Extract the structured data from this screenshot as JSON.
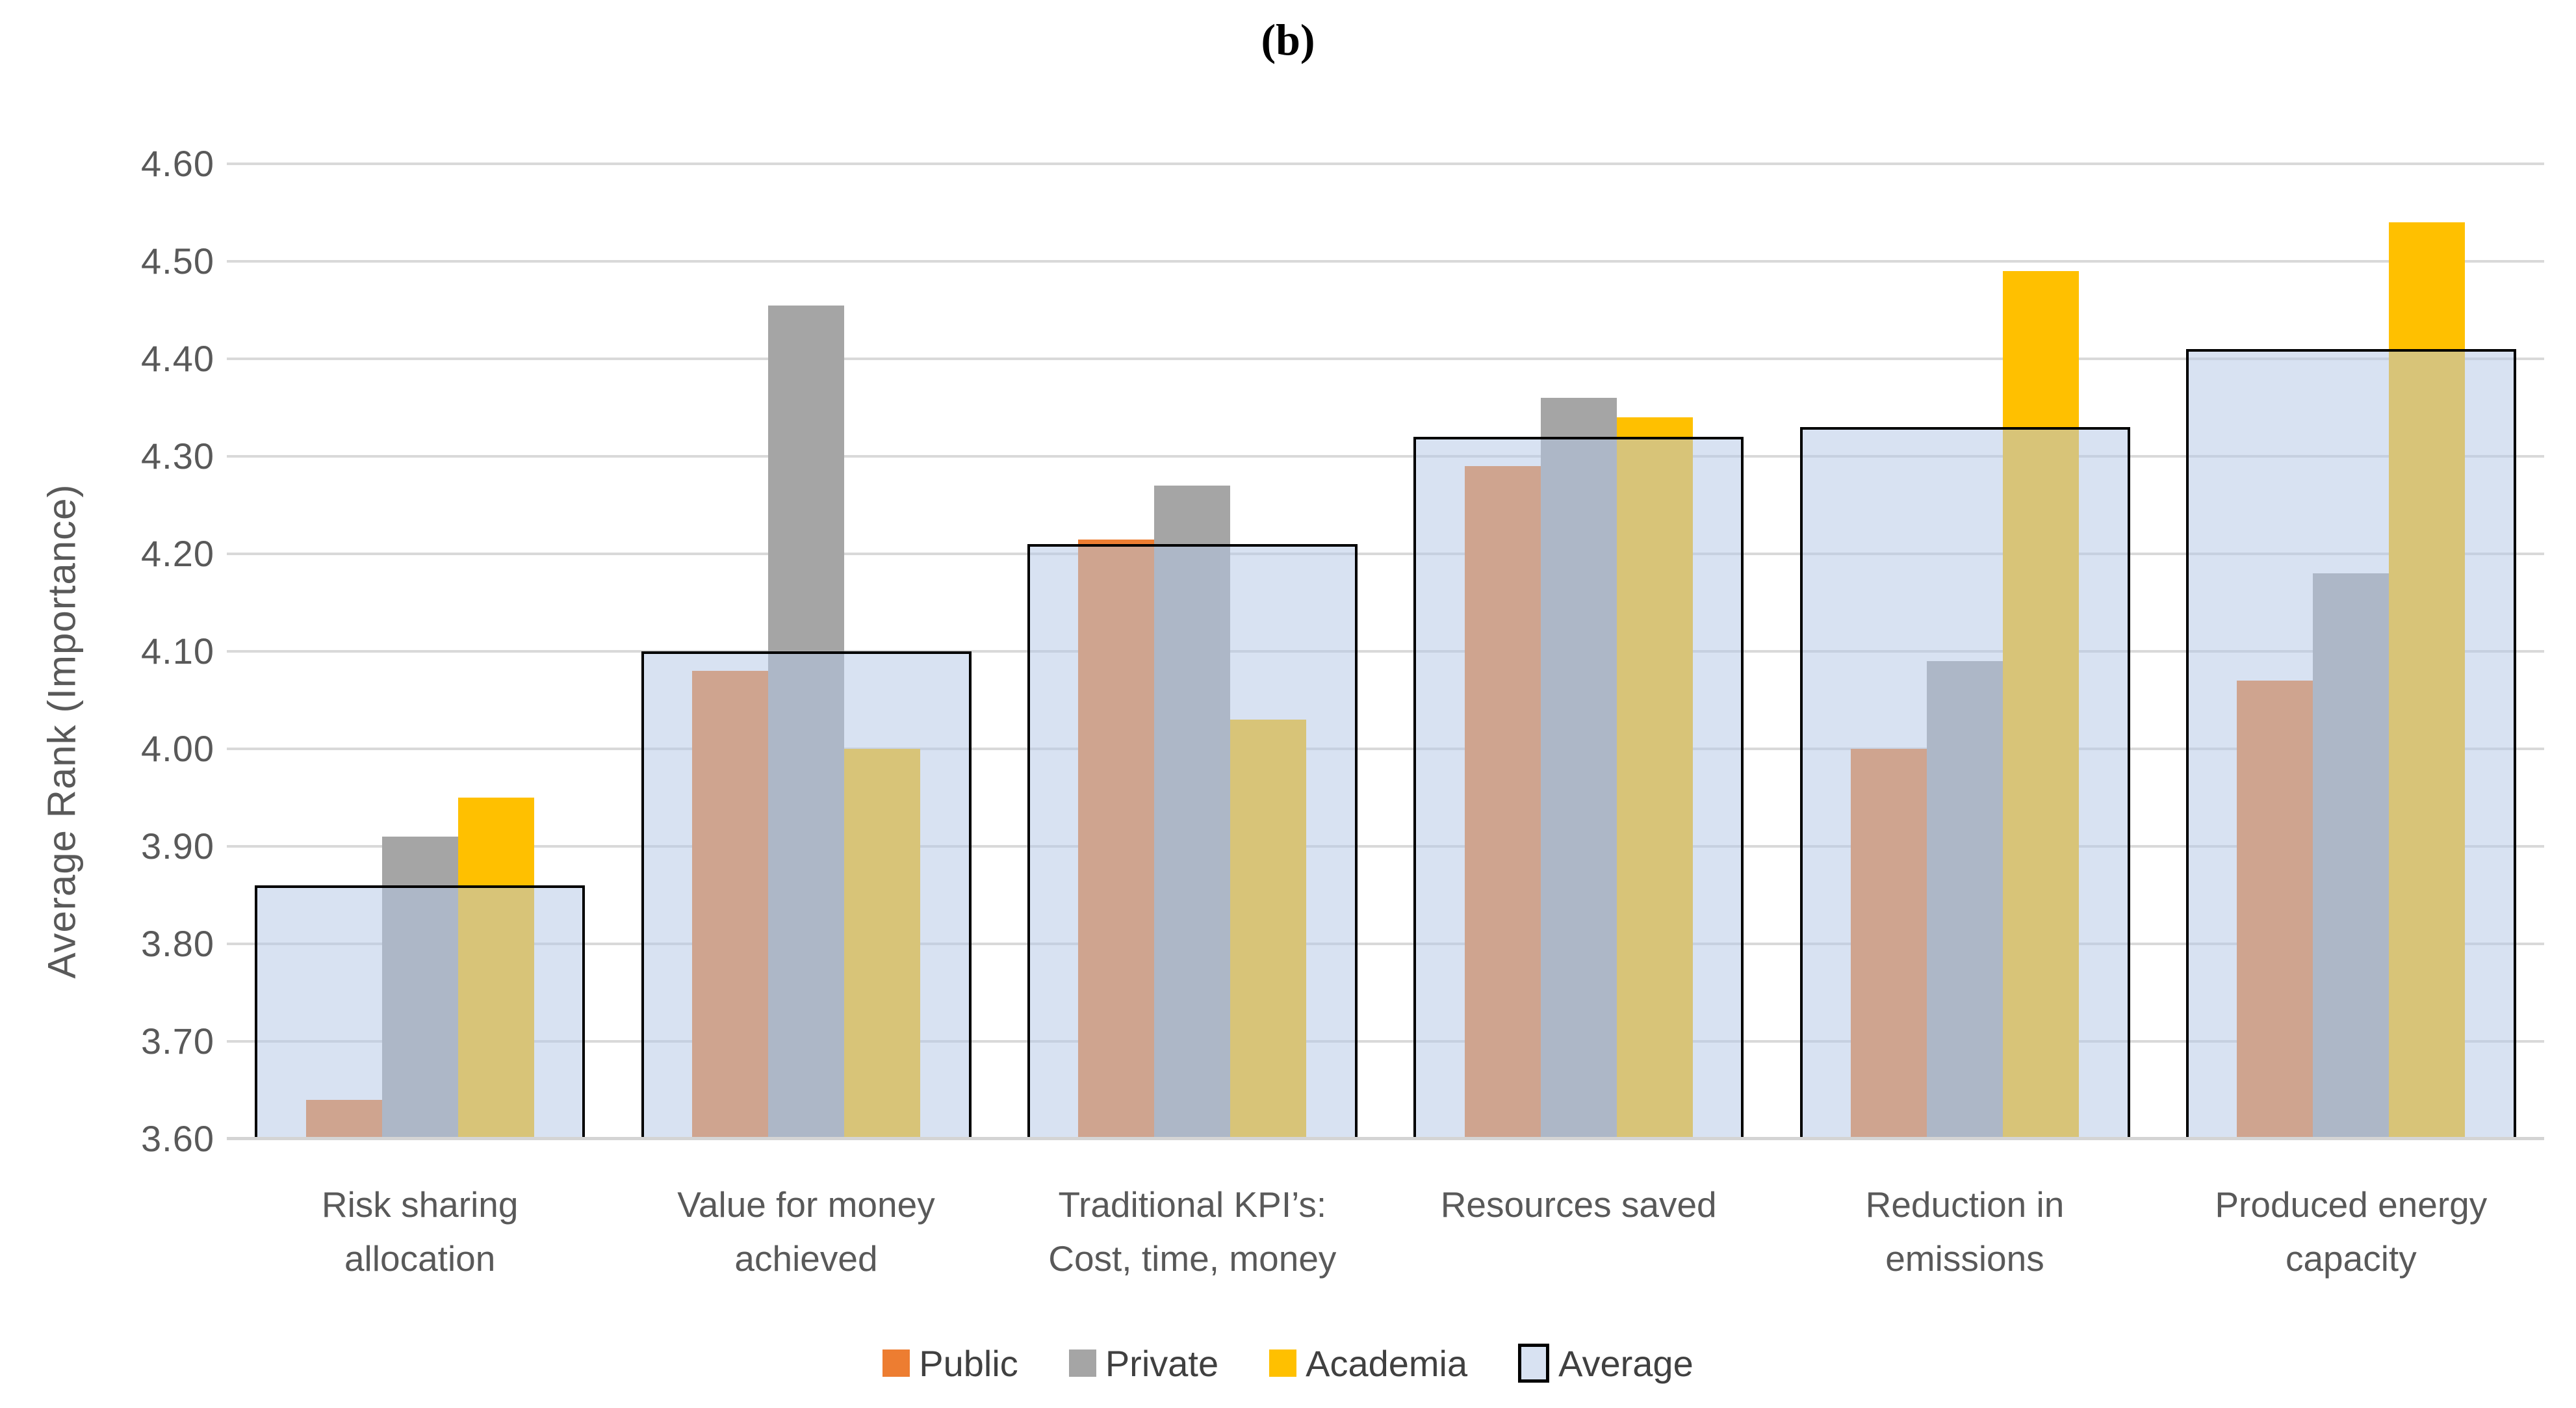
{
  "title": "(b)",
  "y_axis": {
    "label": "Average Rank (Importance)",
    "min": 3.6,
    "max": 4.6,
    "step": 0.1,
    "tick_labels": [
      "3.60",
      "3.70",
      "3.80",
      "3.90",
      "4.00",
      "4.10",
      "4.20",
      "4.30",
      "4.40",
      "4.50",
      "4.60"
    ]
  },
  "legend": {
    "items": [
      {
        "label": "Public",
        "color": "#ED7D31",
        "style": "solid"
      },
      {
        "label": "Private",
        "color": "#A5A5A5",
        "style": "solid"
      },
      {
        "label": "Academia",
        "color": "#FFC000",
        "style": "solid"
      },
      {
        "label": "Average",
        "color": "rgba(181,199,231,0.52)",
        "border_color": "#000000",
        "style": "outlined"
      }
    ]
  },
  "colors": {
    "public": "#ED7D31",
    "private": "#A5A5A5",
    "academia": "#FFC000",
    "average_fill": "rgba(181,199,231,0.52)",
    "average_border": "#000000",
    "gridline": "#D9D9D9",
    "axis_text": "#595959"
  },
  "chart_data": {
    "type": "bar",
    "title": "(b)",
    "xlabel": "",
    "ylabel": "Average Rank (Importance)",
    "ylim": [
      3.6,
      4.6
    ],
    "ytick_step": 0.1,
    "grid": true,
    "legend_position": "bottom",
    "categories": [
      "Risk sharing\nallocation",
      "Value for money\nachieved",
      "Traditional KPI’s:\nCost, time, money",
      "Resources saved",
      "Reduction in\nemissions",
      "Produced energy\ncapacity"
    ],
    "series": [
      {
        "name": "Public",
        "role": "bar",
        "color": "#ED7D31",
        "values": [
          3.64,
          4.08,
          4.215,
          4.29,
          4.0,
          4.07
        ]
      },
      {
        "name": "Private",
        "role": "bar",
        "color": "#A5A5A5",
        "values": [
          3.91,
          4.455,
          4.27,
          4.36,
          4.09,
          4.18
        ]
      },
      {
        "name": "Academia",
        "role": "bar",
        "color": "#FFC000",
        "values": [
          3.95,
          4.0,
          4.03,
          4.34,
          4.49,
          4.54
        ]
      },
      {
        "name": "Average",
        "role": "overlay",
        "color": "rgba(181,199,231,0.52)",
        "border_color": "#000000",
        "values": [
          3.86,
          4.1,
          4.21,
          4.32,
          4.33,
          4.41
        ]
      }
    ]
  }
}
